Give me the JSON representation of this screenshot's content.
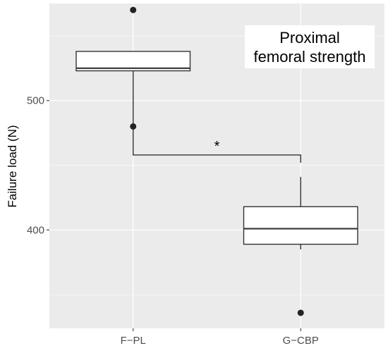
{
  "chart_data": {
    "type": "box",
    "ylabel": "Failure load (N)",
    "ylim": [
      324,
      575
    ],
    "y_ticks": [
      400,
      500
    ],
    "grid": true,
    "categories": [
      "F−PL",
      "G−CBP"
    ],
    "boxes": [
      {
        "category": "F−PL",
        "q1": 523,
        "median": 525,
        "q3": 538,
        "whisker_low": 464,
        "whisker_high": 538,
        "outliers": [
          480,
          570
        ]
      },
      {
        "category": "G−CBP",
        "q1": 389,
        "median": 401,
        "q3": 418,
        "whisker_low": 385,
        "whisker_high": 441,
        "outliers": [
          336
        ]
      }
    ],
    "annotation": [
      "Proximal",
      "femoral strength"
    ],
    "significance": {
      "label": "*",
      "between": [
        "F−PL",
        "G−CBP"
      ],
      "y": 458
    }
  },
  "colors": {
    "panel": "#ebebeb",
    "grid_major": "#ffffff",
    "box_fill": "#ffffff",
    "box_line": "#333333",
    "point": "#222222"
  }
}
